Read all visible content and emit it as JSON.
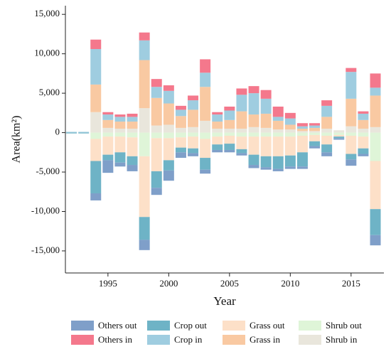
{
  "chart_data": {
    "type": "bar",
    "stacked": true,
    "xlabel": "Year",
    "ylabel": "Area(km²)",
    "x": [
      1992,
      1993,
      1994,
      1995,
      1996,
      1997,
      1998,
      1999,
      2000,
      2001,
      2002,
      2003,
      2004,
      2005,
      2006,
      2007,
      2008,
      2009,
      2010,
      2011,
      2012,
      2013,
      2014,
      2015,
      2016,
      2017
    ],
    "xlim": [
      1991.5,
      2017.7
    ],
    "xticks": [
      1995,
      2000,
      2005,
      2010,
      2015
    ],
    "ylim": [
      -17800,
      16100
    ],
    "yticks": [
      {
        "value": -15000,
        "label": "-15,000"
      },
      {
        "value": -10000,
        "label": "-10,000"
      },
      {
        "value": -5000,
        "label": "-5,000"
      },
      0,
      {
        "value": 5000,
        "label": "5,000"
      },
      {
        "value": 10000,
        "label": "10,000"
      },
      {
        "value": 15000,
        "label": "15,000"
      }
    ],
    "series": [
      {
        "name": "Others out",
        "color": "#7f9fc9",
        "values": [
          0,
          0,
          -900,
          -1600,
          -500,
          -800,
          -1300,
          -900,
          -1300,
          -700,
          -400,
          -500,
          -300,
          -300,
          -300,
          -400,
          -300,
          -300,
          -300,
          -300,
          -300,
          -500,
          -200,
          -800,
          -300,
          -1300
        ]
      },
      {
        "name": "Crop out",
        "color": "#6eb3c6",
        "values": [
          -100,
          -100,
          -4100,
          -700,
          -1300,
          -1100,
          -2900,
          -2100,
          -1300,
          -600,
          -600,
          -1500,
          -700,
          -800,
          -500,
          -1300,
          -1400,
          -1600,
          -1400,
          -1800,
          -600,
          -1000,
          -200,
          -700,
          -700,
          -3300
        ]
      },
      {
        "name": "Grass out",
        "color": "#fde0c8",
        "values": [
          0,
          0,
          -2800,
          -2300,
          -2000,
          -2400,
          -7700,
          -4200,
          -2800,
          -1300,
          -1500,
          -2400,
          -1000,
          -1000,
          -1600,
          -2300,
          -2500,
          -2500,
          -2400,
          -2100,
          -800,
          -1100,
          -200,
          -2300,
          -1500,
          -6100
        ]
      },
      {
        "name": "Shrub out",
        "color": "#dff5d8",
        "values": [
          0,
          0,
          -800,
          -500,
          -500,
          -600,
          -3000,
          -700,
          -700,
          -600,
          -500,
          -800,
          -500,
          -400,
          -500,
          -500,
          -500,
          -500,
          -500,
          -400,
          -300,
          -400,
          -300,
          -400,
          -500,
          -3600
        ]
      },
      {
        "name": "Others in",
        "color": "#f4788c",
        "values": [
          0,
          0,
          1200,
          300,
          300,
          400,
          1000,
          1000,
          700,
          500,
          600,
          1700,
          300,
          500,
          800,
          900,
          1100,
          1300,
          700,
          400,
          300,
          700,
          0,
          500,
          300,
          1800
        ]
      },
      {
        "name": "Crop in",
        "color": "#9fcde0",
        "values": [
          100,
          100,
          4500,
          700,
          600,
          600,
          2500,
          1400,
          1600,
          800,
          1200,
          1800,
          900,
          1200,
          2100,
          2700,
          1900,
          500,
          800,
          300,
          300,
          1400,
          0,
          3400,
          800,
          1000
        ]
      },
      {
        "name": "Grass in",
        "color": "#f9c9a2",
        "values": [
          0,
          0,
          3500,
          1000,
          900,
          900,
          6100,
          3500,
          2700,
          1500,
          2200,
          4300,
          900,
          1100,
          2200,
          1600,
          1800,
          1100,
          600,
          300,
          400,
          1500,
          0,
          3500,
          1100,
          4000
        ]
      },
      {
        "name": "Shrub in",
        "color": "#e9e6dc",
        "values": [
          0,
          0,
          2600,
          600,
          500,
          500,
          3100,
          900,
          1000,
          600,
          700,
          1500,
          500,
          500,
          500,
          700,
          600,
          400,
          400,
          200,
          200,
          500,
          300,
          800,
          500,
          700
        ]
      }
    ]
  }
}
